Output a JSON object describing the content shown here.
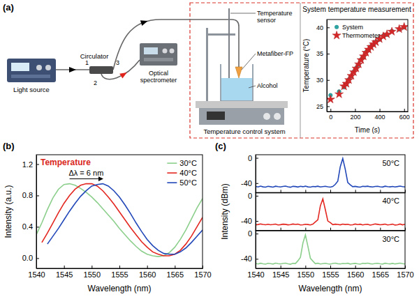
{
  "figure": {
    "panel_labels": [
      "(a)",
      "(b)",
      "(c)"
    ],
    "diagram": {
      "light_source": "Light source",
      "circulator": "Circulator",
      "ports": [
        "1",
        "2",
        "3"
      ],
      "spectrometer": "Optical spectrometer",
      "temperature_sensor": "Temperature sensor",
      "metafiber": "Metafiber-FP",
      "alcohol": "Alcohol",
      "control_system": "Temperature control system"
    }
  },
  "chart_data": [
    {
      "type": "scatter",
      "title": "System temperature measurement",
      "xlabel": "Time (s)",
      "ylabel": "Temperature (°C)",
      "xlim": [
        -30,
        630
      ],
      "xticks": [
        0,
        200,
        400,
        600
      ],
      "ylim": [
        24,
        41.5
      ],
      "yticks": [
        25,
        30,
        35,
        40
      ],
      "legend": "upper left",
      "series": [
        {
          "name": "System",
          "color": "#2ca6a4",
          "marker": "circle",
          "x": [
            0,
            70,
            110,
            130,
            150,
            170,
            190,
            210,
            230,
            250,
            270,
            290,
            310,
            330,
            350,
            370,
            400,
            430,
            460,
            500,
            560,
            600
          ],
          "values": [
            27.1,
            27.8,
            28.6,
            29.2,
            30.1,
            30.7,
            31.6,
            32.3,
            32.9,
            33.9,
            34.4,
            35.3,
            35.7,
            36.4,
            36.7,
            37.3,
            37.7,
            38.4,
            38.6,
            39.3,
            39.6,
            40.0
          ]
        },
        {
          "name": "Thermometer",
          "color": "#d62728",
          "marker": "star",
          "x": [
            0,
            70,
            110,
            130,
            150,
            170,
            190,
            210,
            230,
            250,
            270,
            290,
            310,
            330,
            350,
            370,
            400,
            430,
            460,
            500,
            560,
            600
          ],
          "values": [
            26.3,
            27.3,
            28.8,
            29.3,
            30.0,
            30.8,
            31.5,
            32.2,
            33.0,
            33.8,
            34.5,
            35.2,
            35.8,
            36.3,
            36.8,
            37.2,
            37.8,
            38.3,
            38.7,
            39.2,
            39.7,
            40.1
          ]
        }
      ]
    },
    {
      "type": "line",
      "xlabel": "Wavelength (nm)",
      "ylabel": "Intensity (a.u.)",
      "xlim": [
        1540,
        1570
      ],
      "xticks": [
        1540,
        1545,
        1550,
        1555,
        1560,
        1565,
        1570
      ],
      "ylim": [
        -0.13,
        1.32
      ],
      "yticks": [
        {
          "value": 0,
          "label": "0.0"
        },
        {
          "value": 0.4,
          "label": "0.4"
        },
        {
          "value": 0.8,
          "label": "0.8"
        },
        {
          "value": 1.2,
          "label": "1.2"
        }
      ],
      "legend": "upper right",
      "annotations": [
        "Temperature",
        "Δλ = 6 nm"
      ],
      "x": [
        1540,
        1541,
        1542,
        1543,
        1544,
        1545,
        1546,
        1547,
        1548,
        1549,
        1550,
        1551,
        1552,
        1553,
        1554,
        1555,
        1556,
        1557,
        1558,
        1559,
        1560,
        1561,
        1562,
        1563,
        1564,
        1565,
        1566,
        1567,
        1568,
        1569,
        1570
      ],
      "series": [
        {
          "name": "30°C",
          "color": "#8ccf8c",
          "values": [
            0.3,
            0.45,
            0.62,
            0.77,
            0.88,
            0.94,
            0.95,
            0.93,
            0.89,
            0.84,
            0.78,
            0.71,
            0.63,
            0.55,
            0.47,
            0.38,
            0.3,
            0.22,
            0.15,
            0.09,
            0.05,
            0.03,
            0.02,
            0.03,
            0.07,
            0.14,
            0.24,
            0.36,
            0.5,
            0.64,
            0.76
          ]
        },
        {
          "name": "40°C",
          "color": "#e3261f",
          "values": [
            null,
            0.2,
            0.32,
            0.45,
            0.58,
            0.7,
            0.8,
            0.88,
            0.93,
            0.95,
            0.95,
            0.92,
            0.86,
            0.78,
            0.69,
            0.59,
            0.49,
            0.39,
            0.3,
            0.21,
            0.14,
            0.08,
            0.05,
            0.03,
            0.03,
            0.05,
            0.1,
            0.18,
            0.28,
            0.4,
            0.52
          ]
        },
        {
          "name": "50°C",
          "color": "#2147b8",
          "values": [
            null,
            null,
            0.18,
            0.28,
            0.38,
            0.49,
            0.6,
            0.7,
            0.79,
            0.86,
            0.92,
            0.94,
            0.95,
            0.92,
            0.86,
            0.78,
            0.68,
            0.57,
            0.45,
            0.34,
            0.24,
            0.16,
            0.1,
            0.06,
            0.05,
            0.05,
            0.08,
            0.13,
            0.2,
            0.28,
            0.36
          ]
        }
      ]
    },
    {
      "type": "line",
      "xlim": [
        1540,
        1570
      ],
      "xticks": [
        1540,
        1545,
        1550,
        1555,
        1560,
        1565,
        1570
      ],
      "ylim": [
        -55,
        5
      ],
      "yticks": [
        -40,
        0
      ],
      "tick_labels": "y",
      "x": [
        1540,
        1540.5,
        1541,
        1541.5,
        1542,
        1542.5,
        1543,
        1543.5,
        1544,
        1544.5,
        1545,
        1545.5,
        1546,
        1546.5,
        1547,
        1547.5,
        1548,
        1548.5,
        1549,
        1549.5,
        1550,
        1550.5,
        1551,
        1551.5,
        1552,
        1552.5,
        1553,
        1553.5,
        1554,
        1554.5,
        1555,
        1555.5,
        1556,
        1556.5,
        1557,
        1557.5,
        1558,
        1558.5,
        1559,
        1559.5,
        1560,
        1560.5,
        1561,
        1561.5,
        1562,
        1562.5,
        1563,
        1563.5,
        1564,
        1564.5,
        1565,
        1565.5,
        1566,
        1566.5,
        1567,
        1567.5,
        1568,
        1568.5,
        1569,
        1569.5,
        1570
      ],
      "series": [
        {
          "name": "50°C",
          "color": "#2147b8",
          "values": [
            -45.2,
            -46.1,
            -44.8,
            -45.9,
            -46.4,
            -45.0,
            -45.7,
            -46.3,
            -44.9,
            -45.6,
            -46.0,
            -45.3,
            -44.7,
            -45.8,
            -46.5,
            -45.1,
            -45.4,
            -46.2,
            -45.0,
            -45.7,
            -44.8,
            -45.9,
            -46.3,
            -45.2,
            -45.6,
            -44.9,
            -46.1,
            -45.5,
            -45.0,
            -45.8,
            -46.4,
            -45.3,
            -42.0,
            -37.0,
            -14.0,
            -1.0,
            -18.0,
            -39.0,
            -42.5,
            -45.6,
            -45.1,
            -45.9,
            -46.3,
            -45.0,
            -45.4,
            -44.8,
            -45.7,
            -46.1,
            -45.3,
            -45.0,
            -45.8,
            -46.2,
            -44.9,
            -45.5,
            -45.9,
            -45.2,
            -46.0,
            -45.4,
            -44.7,
            -45.6,
            -46.1
          ]
        }
      ]
    },
    {
      "type": "line",
      "ylabel": "Intensity (dBm)",
      "xlim": [
        1540,
        1570
      ],
      "xticks": [
        1540,
        1545,
        1550,
        1555,
        1560,
        1565,
        1570
      ],
      "ylim": [
        -55,
        5
      ],
      "yticks": [
        -40,
        0
      ],
      "tick_labels": "y",
      "x": [
        1540,
        1540.5,
        1541,
        1541.5,
        1542,
        1542.5,
        1543,
        1543.5,
        1544,
        1544.5,
        1545,
        1545.5,
        1546,
        1546.5,
        1547,
        1547.5,
        1548,
        1548.5,
        1549,
        1549.5,
        1550,
        1550.5,
        1551,
        1551.5,
        1552,
        1552.5,
        1553,
        1553.5,
        1554,
        1554.5,
        1555,
        1555.5,
        1556,
        1556.5,
        1557,
        1557.5,
        1558,
        1558.5,
        1559,
        1559.5,
        1560,
        1560.5,
        1561,
        1561.5,
        1562,
        1562.5,
        1563,
        1563.5,
        1564,
        1564.5,
        1565,
        1565.5,
        1566,
        1566.5,
        1567,
        1567.5,
        1568,
        1568.5,
        1569,
        1569.5,
        1570
      ],
      "series": [
        {
          "name": "40°C",
          "color": "#e3261f",
          "values": [
            -46.1,
            -45.6,
            -44.7,
            -45.4,
            -46.0,
            -45.2,
            -45.9,
            -45.5,
            -44.9,
            -46.2,
            -45.8,
            -45.0,
            -45.3,
            -46.1,
            -45.7,
            -44.8,
            -45.4,
            -45.0,
            -46.3,
            -45.9,
            -45.1,
            -45.6,
            -46.2,
            -44.9,
            -41.5,
            -38.0,
            -16.0,
            -5.0,
            -22.0,
            -40.0,
            -42.5,
            -45.8,
            -45.0,
            -45.5,
            -46.1,
            -44.9,
            -45.6,
            -45.2,
            -46.3,
            -45.9,
            -44.8,
            -45.7,
            -45.0,
            -46.2,
            -45.4,
            -45.1,
            -46.5,
            -45.8,
            -44.7,
            -45.3,
            -46.0,
            -45.6,
            -44.9,
            -46.3,
            -45.7,
            -45.0,
            -46.4,
            -45.9,
            -44.8,
            -46.1,
            -45.2
          ]
        }
      ]
    },
    {
      "type": "line",
      "xlabel": "Wavelength (nm)",
      "xlim": [
        1540,
        1570
      ],
      "xticks": [
        1540,
        1545,
        1550,
        1555,
        1560,
        1565,
        1570
      ],
      "ylim": [
        -55,
        5
      ],
      "yticks": [
        -40,
        0
      ],
      "x": [
        1540,
        1540.5,
        1541,
        1541.5,
        1542,
        1542.5,
        1543,
        1543.5,
        1544,
        1544.5,
        1545,
        1545.5,
        1546,
        1546.5,
        1547,
        1547.5,
        1548,
        1548.5,
        1549,
        1549.5,
        1550,
        1550.5,
        1551,
        1551.5,
        1552,
        1552.5,
        1553,
        1553.5,
        1554,
        1554.5,
        1555,
        1555.5,
        1556,
        1556.5,
        1557,
        1557.5,
        1558,
        1558.5,
        1559,
        1559.5,
        1560,
        1560.5,
        1561,
        1561.5,
        1562,
        1562.5,
        1563,
        1563.5,
        1564,
        1564.5,
        1565,
        1565.5,
        1566,
        1566.5,
        1567,
        1567.5,
        1568,
        1568.5,
        1569,
        1569.5,
        1570
      ],
      "series": [
        {
          "name": "30°C",
          "color": "#8ccf8c",
          "values": [
            -47.3,
            -48.1,
            -46.9,
            -47.8,
            -48.4,
            -47.0,
            -47.6,
            -48.2,
            -46.8,
            -47.5,
            -48.0,
            -47.2,
            -46.7,
            -47.9,
            -48.5,
            -47.1,
            -47.4,
            -43.0,
            -37.5,
            -15.0,
            -2.0,
            -20.0,
            -39.0,
            -43.5,
            -47.6,
            -46.9,
            -48.1,
            -47.5,
            -47.0,
            -47.8,
            -48.4,
            -47.3,
            -46.8,
            -47.7,
            -48.0,
            -47.2,
            -47.5,
            -46.9,
            -48.2,
            -47.6,
            -47.1,
            -47.9,
            -48.3,
            -47.0,
            -47.4,
            -46.8,
            -47.7,
            -48.1,
            -47.3,
            -47.0,
            -47.8,
            -48.2,
            -46.9,
            -47.5,
            -47.9,
            -47.2,
            -48.0,
            -47.4,
            -46.7,
            -47.6,
            -48.1
          ]
        }
      ]
    }
  ]
}
